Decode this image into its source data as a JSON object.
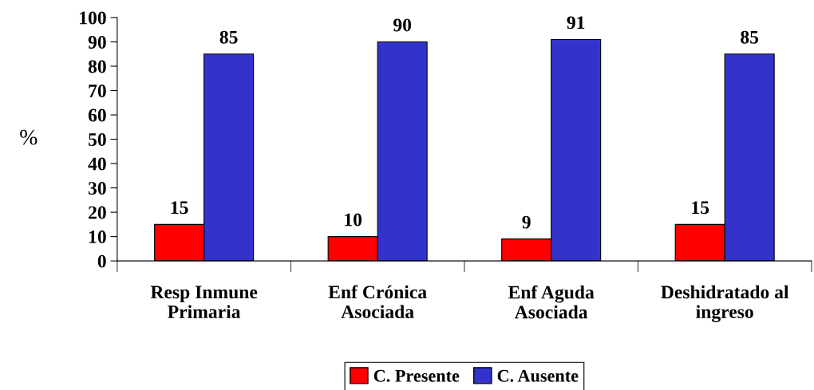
{
  "chart_data": {
    "type": "bar",
    "ylabel": "%",
    "categories": [
      "Resp Inmune\nPrimaria",
      "Enf Crónica\nAsociada",
      "Enf Aguda\nAsociada",
      "Deshidratado al\ningreso"
    ],
    "series": [
      {
        "name": "C. Presente",
        "color": "#ff0000",
        "values": [
          15,
          10,
          9,
          15
        ]
      },
      {
        "name": "C. Ausente",
        "color": "#3333cc",
        "values": [
          85,
          90,
          91,
          85
        ]
      }
    ],
    "ylim": [
      0,
      100
    ],
    "yticks": [
      0,
      10,
      20,
      30,
      40,
      50,
      60,
      70,
      80,
      90,
      100
    ],
    "data_labels": true,
    "grid": false,
    "legend": "bottom"
  }
}
